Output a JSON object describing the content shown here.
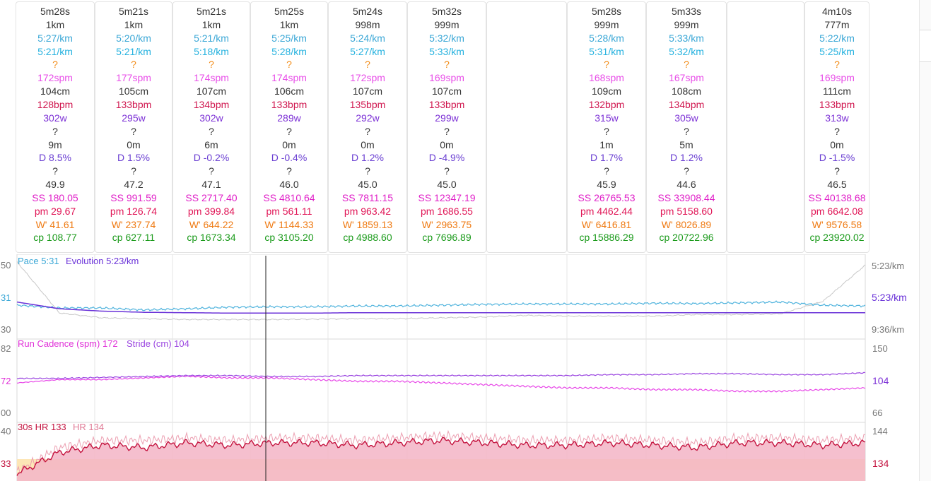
{
  "colors": {
    "default": "#333333",
    "pace": "#3aa7d6",
    "gap": "#26b2df",
    "unknown": "#f28c18",
    "cadence": "#e84ee8",
    "hr": "#d0174f",
    "power": "#7d32d6",
    "drift": "#6a3fd2",
    "ss": "#e020c8",
    "pm": "#e01455",
    "wbal": "#ef7a12",
    "cp": "#1a9a1a"
  },
  "row_colors": [
    "default",
    "default",
    "pace",
    "gap",
    "unknown",
    "cadence",
    "default",
    "hr",
    "power",
    "default",
    "default",
    "drift",
    "default",
    "default",
    "ss",
    "pm",
    "wbal",
    "cp"
  ],
  "splits": [
    {
      "values": [
        "5m28s",
        "1km",
        "5:27/km",
        "5:21/km",
        "?",
        "172spm",
        "104cm",
        "128bpm",
        "302w",
        "?",
        "9m",
        "D 8.5%",
        "?",
        "49.9",
        "SS 180.05",
        "pm 29.67",
        "W' 41.61",
        "cp 108.77"
      ]
    },
    {
      "values": [
        "5m21s",
        "1km",
        "5:20/km",
        "5:21/km",
        "?",
        "177spm",
        "105cm",
        "133bpm",
        "295w",
        "?",
        "0m",
        "D 1.5%",
        "?",
        "47.2",
        "SS 991.59",
        "pm 126.74",
        "W' 237.74",
        "cp 627.11"
      ]
    },
    {
      "values": [
        "5m21s",
        "1km",
        "5:21/km",
        "5:18/km",
        "?",
        "174spm",
        "107cm",
        "134bpm",
        "302w",
        "?",
        "6m",
        "D -0.2%",
        "?",
        "47.1",
        "SS 2717.40",
        "pm 399.84",
        "W' 644.22",
        "cp 1673.34"
      ]
    },
    {
      "values": [
        "5m25s",
        "1km",
        "5:25/km",
        "5:28/km",
        "?",
        "174spm",
        "106cm",
        "133bpm",
        "289w",
        "?",
        "0m",
        "D -0.4%",
        "?",
        "46.0",
        "SS 4810.64",
        "pm 561.11",
        "W' 1144.33",
        "cp 3105.20"
      ]
    },
    {
      "values": [
        "5m24s",
        "998m",
        "5:24/km",
        "5:27/km",
        "?",
        "172spm",
        "107cm",
        "135bpm",
        "292w",
        "?",
        "0m",
        "D 1.2%",
        "?",
        "45.0",
        "SS 7811.15",
        "pm 963.42",
        "W' 1859.13",
        "cp 4988.60"
      ]
    },
    {
      "values": [
        "5m32s",
        "999m",
        "5:32/km",
        "5:33/km",
        "?",
        "169spm",
        "107cm",
        "133bpm",
        "299w",
        "?",
        "0m",
        "D -4.9%",
        "?",
        "45.0",
        "SS 12347.19",
        "pm 1686.55",
        "W' 2963.75",
        "cp 7696.89"
      ]
    },
    {
      "values": []
    },
    {
      "values": [
        "5m28s",
        "999m",
        "5:28/km",
        "5:31/km",
        "?",
        "168spm",
        "109cm",
        "132bpm",
        "315w",
        "?",
        "1m",
        "D 1.7%",
        "?",
        "45.9",
        "SS 26765.53",
        "pm 4462.44",
        "W' 6416.81",
        "cp 15886.29"
      ]
    },
    {
      "values": [
        "5m33s",
        "999m",
        "5:33/km",
        "5:32/km",
        "?",
        "167spm",
        "108cm",
        "134bpm",
        "305w",
        "?",
        "5m",
        "D 1.2%",
        "?",
        "44.6",
        "SS 33908.44",
        "pm 5158.60",
        "W' 8026.89",
        "cp 20722.96"
      ]
    },
    {
      "values": []
    },
    {
      "values": [
        "4m10s",
        "777m",
        "5:22/km",
        "5:25/km",
        "?",
        "169spm",
        "111cm",
        "133bpm",
        "313w",
        "?",
        "0m",
        "D -1.5%",
        "?",
        "46.5",
        "SS 40138.68",
        "pm 6642.08",
        "W' 9576.58",
        "cp 23920.02"
      ]
    }
  ],
  "chart_data": [
    {
      "type": "line",
      "legend": [
        "Pace 5:31",
        "Evolution 5:23/km"
      ],
      "left_ticks": [
        "50",
        "31",
        "30"
      ],
      "right_ticks": [
        "5:23/km",
        "5:23/km",
        "9:36/km"
      ],
      "series": [
        {
          "name": "Pace",
          "color": "#4fb3dd",
          "values": [
            5.42,
            5.35,
            5.35,
            5.3,
            5.33,
            5.37,
            5.38,
            5.38,
            5.4,
            5.4,
            5.42,
            5.44,
            5.45,
            5.45,
            5.45,
            5.47,
            5.46,
            5.48,
            5.5,
            5.42,
            5.4
          ]
        },
        {
          "name": "Evolution",
          "color": "#6a32d8",
          "values": [
            5.5,
            5.33,
            5.27,
            5.24,
            5.23,
            5.22,
            5.22,
            5.22,
            5.23,
            5.23,
            5.23,
            5.23,
            5.23,
            5.23,
            5.23,
            5.23,
            5.23,
            5.23,
            5.23,
            5.23,
            5.23
          ]
        },
        {
          "name": "",
          "color": "#c8c8c8",
          "values": [
            9.6,
            6.5,
            6.2,
            6.15,
            6.1,
            6.1,
            6.1,
            6.12,
            6.15,
            6.15,
            6.2,
            6.25,
            6.35,
            6.3,
            6.3,
            6.3,
            6.4,
            6.4,
            6.45,
            7.2,
            9.4
          ]
        }
      ]
    },
    {
      "type": "line",
      "legend": [
        "Run Cadence (spm) 172",
        "Stride (cm) 104"
      ],
      "left_ticks": [
        "82",
        "72",
        "00"
      ],
      "right_ticks": [
        "150",
        "104",
        "66"
      ],
      "series": [
        {
          "name": "Run Cadence (spm)",
          "color": "#e848e8",
          "values": [
            172,
            174,
            174,
            175,
            176,
            175,
            175,
            174,
            173,
            173,
            172,
            171,
            170,
            169,
            169,
            168,
            168,
            167,
            167,
            168,
            169
          ]
        },
        {
          "name": "Stride (cm)",
          "color": "#9a45e0",
          "values": [
            104,
            104,
            105,
            106,
            107,
            107,
            106,
            106,
            107,
            107,
            107,
            107,
            107,
            107,
            108,
            108,
            109,
            109,
            108,
            108,
            110
          ]
        }
      ]
    },
    {
      "type": "area",
      "legend": [
        "30s HR 133",
        "HR 134"
      ],
      "left_ticks": [
        "40",
        "33"
      ],
      "right_ticks": [
        "144",
        "134"
      ],
      "series": [
        {
          "name": "30s HR",
          "color": "#c4133f",
          "values": [
            121,
            130,
            133,
            132,
            134,
            133,
            134,
            134,
            133,
            134,
            135,
            134,
            133,
            133,
            134,
            133,
            132,
            134,
            134,
            133,
            134
          ]
        },
        {
          "name": "HR",
          "color": "#ec9fb1",
          "values": [
            122,
            132,
            135,
            135,
            136,
            135,
            136,
            136,
            135,
            136,
            137,
            136,
            135,
            135,
            136,
            135,
            134,
            136,
            136,
            135,
            136
          ]
        }
      ]
    }
  ]
}
